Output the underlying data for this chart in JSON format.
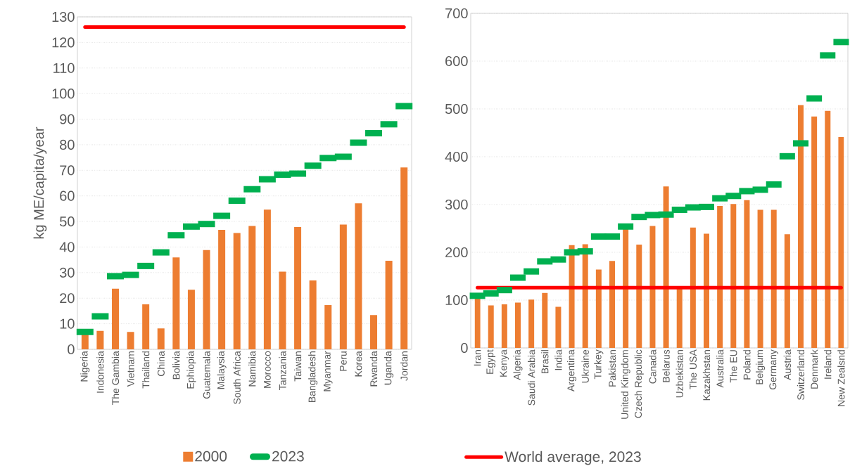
{
  "chart_data": [
    {
      "type": "bar",
      "ylabel": "kg ME/capita/year",
      "categories": [
        "Nigeria",
        "Indonesia",
        "The Gambia",
        "Vietnam",
        "Thailand",
        "China",
        "Bolivia",
        "Ephiopia",
        "Guatemala",
        "Malaysia",
        "South Africa",
        "Namibia",
        "Morocco",
        "Tanzania",
        "Taiwan",
        "Bangladesh",
        "Myanmar",
        "Peru",
        "Korea",
        "Rwanda",
        "Uganda",
        "Jordan"
      ],
      "ylim": [
        0,
        130
      ],
      "yticks": [
        0,
        10,
        20,
        30,
        40,
        50,
        60,
        70,
        80,
        90,
        100,
        110,
        120,
        130
      ],
      "grid": "y",
      "legend": "bottom",
      "series": [
        {
          "name": "2000",
          "color": "#ed7d31",
          "values": [
            6,
            7.2,
            23.7,
            6.8,
            17.6,
            8.2,
            35.9,
            23.3,
            38.8,
            46.7,
            45.5,
            48.2,
            54.6,
            30.4,
            47.8,
            26.9,
            17.3,
            48.8,
            57.1,
            13.4,
            34.6,
            71.1
          ]
        },
        {
          "name": "2023",
          "type": "scatter",
          "color": "#00b050",
          "values": [
            6.8,
            12.9,
            28.6,
            29.1,
            32.6,
            37.9,
            44.6,
            48.0,
            49.0,
            52.2,
            58.1,
            62.6,
            66.5,
            68.3,
            68.7,
            71.8,
            74.8,
            75.3,
            80.8,
            84.5,
            88.0,
            95.1
          ]
        }
      ],
      "ref_lines": [
        {
          "axis": "y",
          "value": 126,
          "color": "#ff0000"
        }
      ]
    },
    {
      "type": "bar",
      "categories": [
        "Iran",
        "Egypt",
        "Kenya",
        "Algeria",
        "Saudi Arabia",
        "Brasil",
        "India",
        "Argentina",
        "Ukraine",
        "Turkey",
        "Pakistan",
        "United Kingdom",
        "Czech Republic",
        "Canada",
        "Belarus",
        "Uzbekistan",
        "The USA",
        "Kazakhstan",
        "Australia",
        "The EU",
        "Poland",
        "Belgium",
        "Germany",
        "Austria",
        "Switzerland",
        "Denmark",
        "Ireland",
        "New Zealsnd"
      ],
      "ylim": [
        0,
        700
      ],
      "yticks": [
        0,
        100,
        200,
        300,
        400,
        500,
        600,
        700
      ],
      "grid": "y",
      "legend": "bottom",
      "series": [
        {
          "color": "#ed7d31",
          "values": [
            106,
            89,
            91,
            95,
            101,
            115,
            86,
            215,
            217,
            164,
            182,
            250,
            216,
            255,
            338,
            125,
            252,
            239,
            297,
            301,
            309,
            289,
            289,
            238,
            508,
            484,
            496,
            441
          ]
        },
        {
          "type": "scatter",
          "color": "#00b050",
          "values": [
            109,
            114,
            121,
            147,
            160,
            181,
            185,
            200,
            202,
            233,
            233,
            254,
            274,
            278,
            279,
            289,
            294,
            295,
            313,
            318,
            328,
            331,
            342,
            401,
            428,
            522,
            612,
            640
          ]
        }
      ],
      "ref_lines": [
        {
          "axis": "y",
          "value": 126,
          "color": "#ff0000",
          "label": "World average, 2023"
        }
      ]
    }
  ]
}
